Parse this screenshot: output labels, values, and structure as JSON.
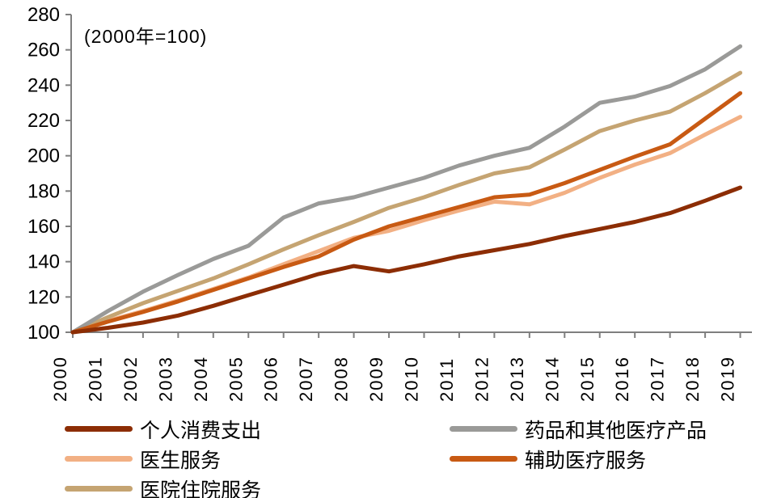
{
  "chart_data": {
    "type": "line",
    "title_note": "(2000年=100)",
    "x": [
      2000,
      2001,
      2002,
      2003,
      2004,
      2005,
      2006,
      2007,
      2008,
      2009,
      2010,
      2011,
      2012,
      2013,
      2014,
      2015,
      2016,
      2017,
      2018,
      2019
    ],
    "ylim": [
      100,
      280
    ],
    "yticks": [
      100,
      120,
      140,
      160,
      180,
      200,
      220,
      240,
      260,
      280
    ],
    "grid": false,
    "axis_color": "#7f7f7f",
    "series": [
      {
        "name": "医生服务",
        "color": "#F2B084",
        "values": [
          100,
          106.5,
          112,
          118,
          124.5,
          131,
          138.5,
          146,
          153.5,
          157.5,
          163.5,
          169,
          174,
          172.5,
          179,
          187.5,
          195,
          201.5,
          212,
          222
        ]
      },
      {
        "name": "医院住院服务",
        "color": "#C5A472",
        "values": [
          100,
          108.5,
          116.5,
          123.5,
          130.5,
          138.5,
          147,
          155,
          162.5,
          170.5,
          176.5,
          183.5,
          190,
          193.5,
          203.5,
          214,
          220,
          225,
          235.5,
          247
        ]
      },
      {
        "name": "药品和其他医疗产品",
        "color": "#9A9A98",
        "values": [
          100,
          112,
          123,
          132.5,
          141.5,
          149,
          165,
          173,
          176.5,
          182,
          187.5,
          194.5,
          200,
          204.5,
          216.5,
          230,
          233.5,
          239.5,
          249,
          262
        ]
      },
      {
        "name": "辅助医疗服务",
        "color": "#C85A13",
        "values": [
          100,
          106,
          111.5,
          117.5,
          124,
          130.5,
          137,
          143,
          152.5,
          160,
          165.5,
          171,
          176.5,
          178,
          184.5,
          192,
          199.5,
          206.5,
          221,
          235.5
        ]
      },
      {
        "name": "个人消费支出",
        "color": "#8C2D04",
        "values": [
          100,
          102.5,
          105.5,
          109.5,
          115,
          121,
          127,
          133,
          137.5,
          134.5,
          138.5,
          143,
          146.5,
          150,
          154.5,
          158.5,
          162.5,
          167.5,
          174.5,
          182
        ]
      }
    ],
    "legend": {
      "position": "bottom",
      "columns": [
        [
          "个人消费支出",
          "医生服务",
          "医院住院服务"
        ],
        [
          "药品和其他医疗产品",
          "辅助医疗服务"
        ]
      ]
    }
  }
}
